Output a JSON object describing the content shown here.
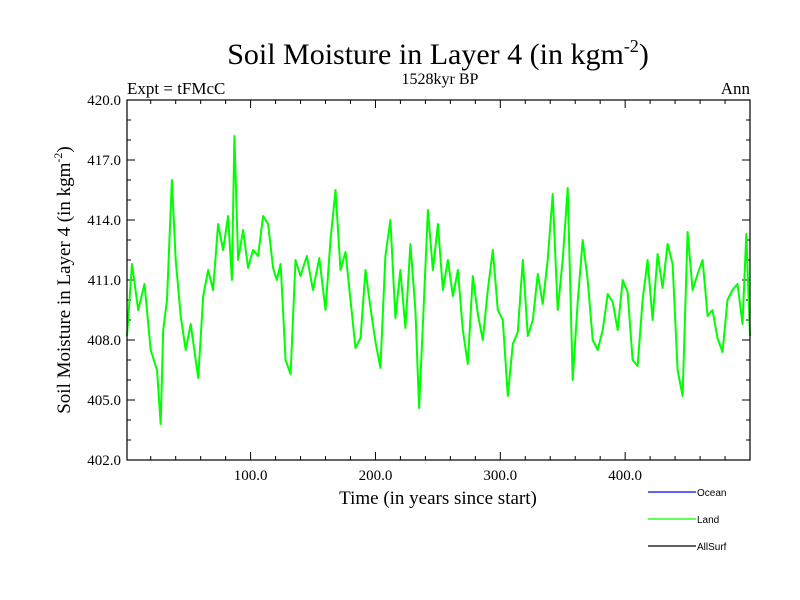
{
  "chart_data": {
    "type": "line",
    "title": "Soil Moisture in Layer 4 (in kgm",
    "title_sup": "-2",
    "title_close": ")",
    "subtitle": "1528kyr BP",
    "left_label": "Expt = tFMcC",
    "right_label": "Ann",
    "xlabel": "Time (in years since start)",
    "ylabel": "Soil Moisture in Layer 4 (in kgm",
    "ylabel_sup": "-2",
    "ylabel_close": ")",
    "xlim": [
      1,
      500
    ],
    "ylim": [
      402.0,
      420.0
    ],
    "x_ticks": [
      100,
      200,
      300,
      400
    ],
    "x_tick_labels": [
      "100.0",
      "200.0",
      "300.0",
      "400.0"
    ],
    "y_ticks": [
      402,
      405,
      408,
      411,
      414,
      417,
      420
    ],
    "y_tick_labels": [
      "402.0",
      "405.0",
      "408.0",
      "411.0",
      "414.0",
      "417.0",
      "420.0"
    ],
    "colors": {
      "ocean": "#0000ff",
      "land": "#00ff00",
      "allsurf": "#000000"
    },
    "legend": [
      {
        "name": "Ocean",
        "color": "#0000ff"
      },
      {
        "name": "Land",
        "color": "#00ff00"
      },
      {
        "name": "AllSurf",
        "color": "#000000"
      }
    ],
    "series": [
      {
        "name": "Land",
        "color": "#00ff00",
        "x": [
          1,
          5,
          10,
          15,
          20,
          25,
          28,
          30,
          33,
          37,
          40,
          44,
          48,
          52,
          56,
          58,
          62,
          66,
          70,
          74,
          78,
          82,
          85,
          87,
          90,
          94,
          98,
          102,
          106,
          110,
          114,
          118,
          121,
          124,
          128,
          132,
          136,
          140,
          145,
          150,
          155,
          160,
          164,
          168,
          172,
          176,
          180,
          184,
          188,
          192,
          196,
          200,
          204,
          208,
          212,
          216,
          220,
          224,
          228,
          232,
          235,
          238,
          242,
          246,
          250,
          254,
          258,
          262,
          266,
          270,
          274,
          278,
          282,
          286,
          290,
          294,
          298,
          302,
          306,
          310,
          314,
          318,
          322,
          326,
          330,
          334,
          338,
          342,
          346,
          350,
          354,
          358,
          362,
          366,
          370,
          374,
          378,
          382,
          386,
          390,
          394,
          398,
          402,
          406,
          410,
          414,
          418,
          422,
          426,
          430,
          434,
          438,
          442,
          446,
          450,
          454,
          458,
          462,
          466,
          470,
          474,
          478,
          482,
          486,
          490,
          494,
          497,
          500
        ],
        "values": [
          408.2,
          411.8,
          409.5,
          410.8,
          407.5,
          406.5,
          403.8,
          408.5,
          410.0,
          416.0,
          412.0,
          409.2,
          407.5,
          408.8,
          407.0,
          406.1,
          410.2,
          411.5,
          410.5,
          413.8,
          412.5,
          414.2,
          411.0,
          418.2,
          412.0,
          413.5,
          411.6,
          412.5,
          412.2,
          414.2,
          413.8,
          411.6,
          411.0,
          411.8,
          407.0,
          406.3,
          412.0,
          411.2,
          412.2,
          410.5,
          412.1,
          409.5,
          413.0,
          415.5,
          411.5,
          412.4,
          410.0,
          407.6,
          408.1,
          411.5,
          409.6,
          407.9,
          406.6,
          412.2,
          414.0,
          409.1,
          411.5,
          408.6,
          412.8,
          409.5,
          404.6,
          408.8,
          414.5,
          411.5,
          413.8,
          410.5,
          412.0,
          410.2,
          411.5,
          408.5,
          406.8,
          411.2,
          409.3,
          408.0,
          410.5,
          412.5,
          409.5,
          409.0,
          405.2,
          407.8,
          408.4,
          412.0,
          408.2,
          409.0,
          411.3,
          409.8,
          412.0,
          415.3,
          409.5,
          412.0,
          415.6,
          406.0,
          409.9,
          413.0,
          411.0,
          408.0,
          407.5,
          408.5,
          410.3,
          409.9,
          408.5,
          411.0,
          410.4,
          407.0,
          406.7,
          410.0,
          412.0,
          409.0,
          412.3,
          410.6,
          412.8,
          411.8,
          406.5,
          405.2,
          413.4,
          410.5,
          411.3,
          412.0,
          409.2,
          409.5,
          408.1,
          407.4,
          410.0,
          410.5,
          410.8,
          408.8,
          413.3,
          408.2
        ]
      }
    ]
  }
}
